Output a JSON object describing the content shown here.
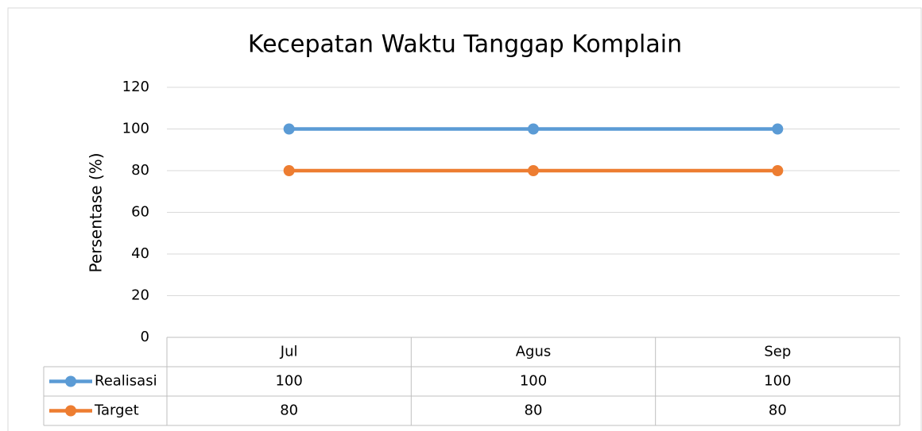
{
  "chart_data": {
    "type": "line",
    "title": "Kecepatan Waktu Tanggap Komplain",
    "y_label": "Persentase (%)",
    "categories": [
      "Jul",
      "Agus",
      "Sep"
    ],
    "series": [
      {
        "name": "Realisasi",
        "color": "#5b9bd5",
        "values": [
          100,
          100,
          100
        ]
      },
      {
        "name": "Target",
        "color": "#ed7d31",
        "values": [
          80,
          80,
          80
        ]
      }
    ],
    "ylim": [
      0,
      120
    ],
    "yticks": [
      0,
      20,
      40,
      60,
      80,
      100,
      120
    ],
    "grid": true,
    "data_table": true
  }
}
